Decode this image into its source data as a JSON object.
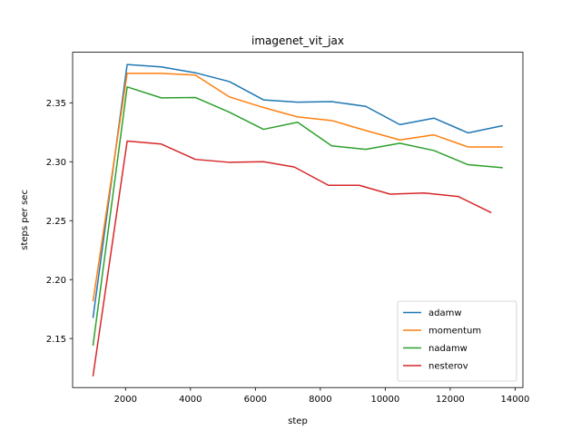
{
  "chart_data": {
    "type": "line",
    "title": "imagenet_vit_jax",
    "xlabel": "step",
    "ylabel": "steps per sec",
    "xlim": [
      370,
      14240
    ],
    "ylim": [
      2.1084,
      2.3929
    ],
    "xticks": [
      2000,
      4000,
      6000,
      8000,
      10000,
      12000,
      14000
    ],
    "xtick_labels": [
      "2000",
      "4000",
      "6000",
      "8000",
      "10000",
      "12000",
      "14000"
    ],
    "yticks": [
      2.15,
      2.2,
      2.25,
      2.3,
      2.35
    ],
    "ytick_labels": [
      "2.15",
      "2.20",
      "2.25",
      "2.30",
      "2.35"
    ],
    "grid": false,
    "legend_position": "lower-right",
    "series": [
      {
        "name": "adamw",
        "color": "#1f77b4",
        "x": [
          1000,
          2050,
          3100,
          4150,
          5200,
          6250,
          7300,
          8350,
          9400,
          10450,
          11500,
          12550,
          13600
        ],
        "y": [
          2.168,
          2.3825,
          2.3805,
          2.3755,
          2.368,
          2.3525,
          2.3505,
          2.351,
          2.347,
          2.3315,
          2.337,
          2.3245,
          2.3305
        ]
      },
      {
        "name": "momentum",
        "color": "#ff7f0e",
        "x": [
          1000,
          2050,
          3100,
          4150,
          5200,
          6250,
          7300,
          8350,
          9400,
          10450,
          11500,
          12550,
          13600
        ],
        "y": [
          2.182,
          2.375,
          2.375,
          2.3735,
          2.355,
          2.346,
          2.338,
          2.335,
          2.3265,
          2.3185,
          2.3228,
          2.3125,
          2.3125
        ]
      },
      {
        "name": "nadamw",
        "color": "#2ca02c",
        "x": [
          1000,
          2050,
          3100,
          4150,
          5200,
          6250,
          7300,
          8350,
          9400,
          10450,
          11500,
          12550,
          13600
        ],
        "y": [
          2.1445,
          2.3635,
          2.3542,
          2.3545,
          2.342,
          2.3275,
          2.3335,
          2.3135,
          2.3105,
          2.3157,
          2.3095,
          2.2975,
          2.295
        ]
      },
      {
        "name": "nesterov",
        "color": "#d62728",
        "x": [
          1000,
          2050,
          3100,
          4150,
          5200,
          6250,
          7200,
          8250,
          9200,
          10150,
          11200,
          12250,
          13250
        ],
        "y": [
          2.1185,
          2.3175,
          2.315,
          2.302,
          2.2995,
          2.3,
          2.2955,
          2.28,
          2.28,
          2.2725,
          2.2735,
          2.2705,
          2.257
        ]
      }
    ]
  }
}
